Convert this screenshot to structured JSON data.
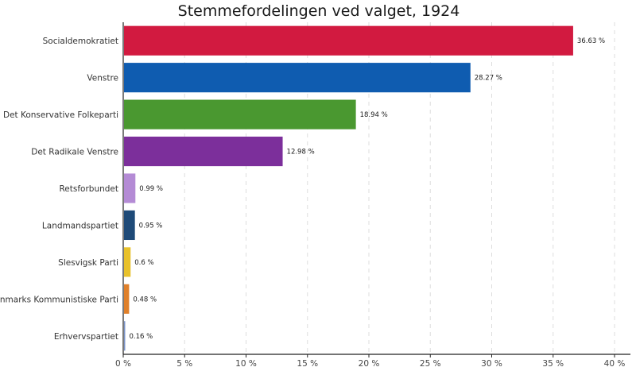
{
  "chart_data": {
    "type": "bar",
    "orientation": "horizontal",
    "title": "Stemmefordelingen ved valget, 1924",
    "xlabel": "",
    "ylabel": "",
    "xlim": [
      0,
      40
    ],
    "x_ticks": [
      0,
      5,
      10,
      15,
      20,
      25,
      30,
      35,
      40
    ],
    "tick_suffix": " %",
    "grid": "vertical-dashed",
    "categories": [
      "Socialdemokratiet",
      "Venstre",
      "Det Konservative Folkeparti",
      "Det Radikale Venstre",
      "Retsforbundet",
      "Landmandspartiet",
      "Slesvigsk Parti",
      "Danmarks Kommunistiske Parti",
      "Erhvervspartiet"
    ],
    "values": [
      36.63,
      28.27,
      18.94,
      12.98,
      0.99,
      0.95,
      0.6,
      0.48,
      0.16
    ],
    "value_labels": [
      "36.63 %",
      "28.27 %",
      "18.94 %",
      "12.98 %",
      "0.99 %",
      "0.95 %",
      "0.6 %",
      "0.48 %",
      "0.16 %"
    ],
    "colors": [
      "#d21a40",
      "#0f5cb0",
      "#4a9830",
      "#7c2f9b",
      "#b48bd5",
      "#1e4a78",
      "#e8c12b",
      "#e0802a",
      "#7a93c8"
    ]
  }
}
